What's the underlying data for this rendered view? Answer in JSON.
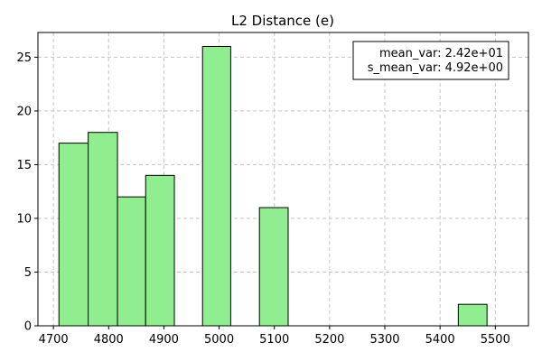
{
  "chart_data": {
    "type": "bar",
    "title": "L2 Distance (e)",
    "xlabel": "",
    "ylabel": "",
    "xlim": [
      4672,
      5560
    ],
    "ylim": [
      0,
      27.3
    ],
    "grid": true,
    "x_ticks": [
      4700,
      4800,
      4900,
      5000,
      5100,
      5200,
      5300,
      5400,
      5500
    ],
    "y_ticks": [
      0,
      5,
      10,
      15,
      20,
      25
    ],
    "bins": [
      {
        "x0": 4710,
        "x1": 4763,
        "count": 17
      },
      {
        "x0": 4763,
        "x1": 4816,
        "count": 18
      },
      {
        "x0": 4816,
        "x1": 4867,
        "count": 12
      },
      {
        "x0": 4867,
        "x1": 4919,
        "count": 14
      },
      {
        "x0": 4970,
        "x1": 5021,
        "count": 26
      },
      {
        "x0": 5073,
        "x1": 5125,
        "count": 11
      },
      {
        "x0": 5433,
        "x1": 5485,
        "count": 2
      }
    ],
    "bar_color": "#90ee90",
    "edge_color": "#000000",
    "annotation": {
      "lines": [
        "mean_var: 2.42e+01",
        "s_mean_var: 4.92e+00"
      ],
      "placement": "top-right"
    }
  }
}
